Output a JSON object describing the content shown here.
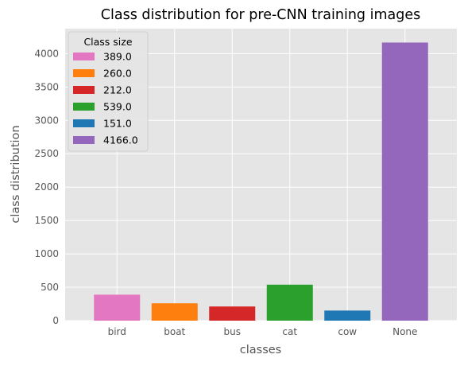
{
  "chart_data": {
    "type": "bar",
    "title": "Class distribution for pre-CNN training images",
    "xlabel": "classes",
    "ylabel": "class distribution",
    "categories": [
      "bird",
      "boat",
      "bus",
      "cat",
      "cow",
      "None"
    ],
    "values": [
      389.0,
      260.0,
      212.0,
      539.0,
      151.0,
      4166.0
    ],
    "colors": [
      "#e377c2",
      "#ff7f0e",
      "#d62728",
      "#2ca02c",
      "#1f77b4",
      "#9467bd"
    ],
    "ylim": [
      0,
      4374
    ],
    "yticks": [
      0,
      500,
      1000,
      1500,
      2000,
      2500,
      3000,
      3500,
      4000
    ],
    "grid": true,
    "legend": {
      "title": "Class size",
      "placement": "top-left",
      "labels": [
        "389.0",
        "260.0",
        "212.0",
        "539.0",
        "151.0",
        "4166.0"
      ]
    },
    "style": {
      "background": "#e5e5e5",
      "grid_color": "#ffffff"
    }
  }
}
